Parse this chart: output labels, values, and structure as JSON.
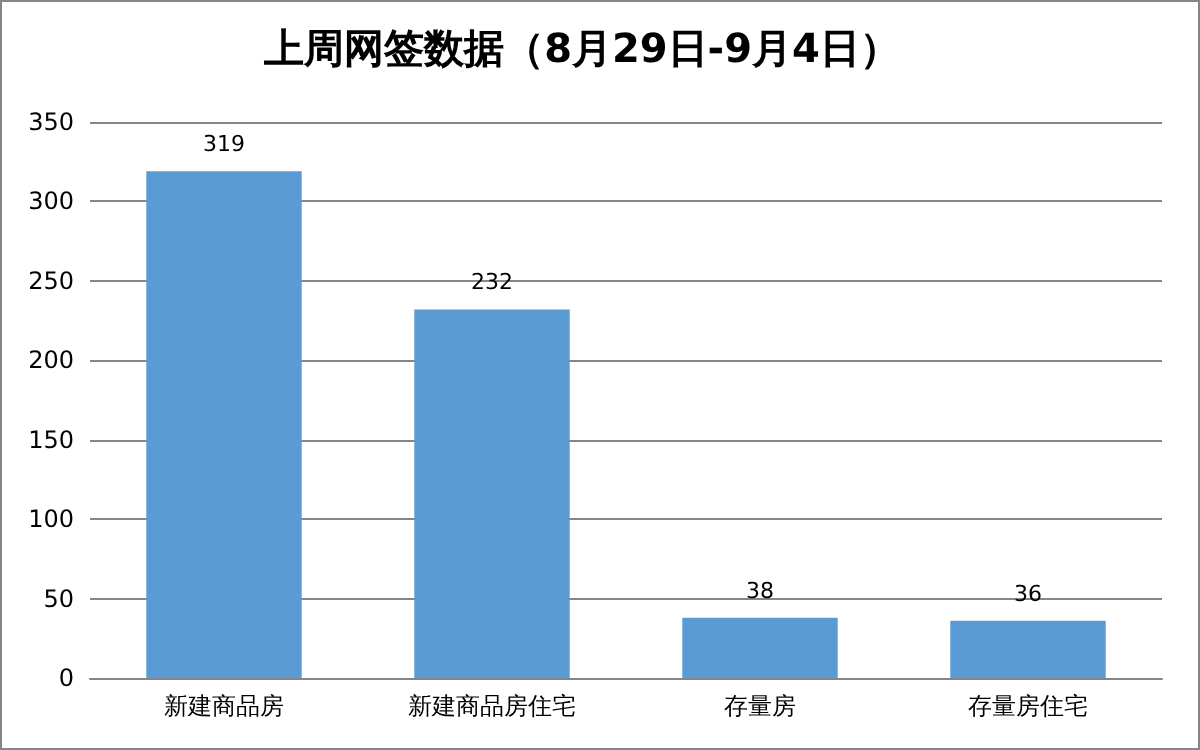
{
  "chart_data": {
    "type": "bar",
    "title": "上周网签数据（8月29日-9月4日）",
    "categories": [
      "新建商品房",
      "新建商品房住宅",
      "存量房",
      "存量房住宅"
    ],
    "values": [
      319,
      232,
      38,
      36
    ],
    "color": "#5b9bd5",
    "ylim": [
      0,
      350
    ],
    "yticks": [
      0,
      50,
      100,
      150,
      200,
      250,
      300,
      350
    ],
    "grid": "y",
    "data_labels": true
  }
}
